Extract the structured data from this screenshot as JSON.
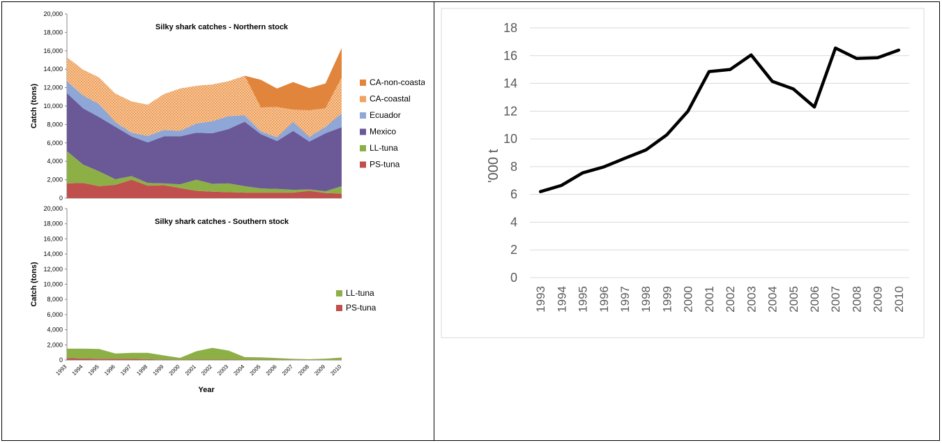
{
  "chart_data": [
    {
      "type": "area",
      "stacked": true,
      "title": "Silky shark catches - Northern stock",
      "ylabel": "Catch (tons)",
      "xlabel": "",
      "ylim": [
        0,
        20000
      ],
      "yticks": [
        "0",
        "2,000",
        "4,000",
        "6,000",
        "8,000",
        "10,000",
        "12,000",
        "14,000",
        "16,000",
        "18,000",
        "20,000"
      ],
      "x": [
        1993,
        1994,
        1995,
        1996,
        1997,
        1998,
        1999,
        2000,
        2001,
        2002,
        2003,
        2004,
        2005,
        2006,
        2007,
        2008,
        2009,
        2010
      ],
      "legend_position": "right",
      "series": [
        {
          "name": "PS-tuna",
          "color": "#c0504d",
          "values": [
            1600,
            1650,
            1300,
            1450,
            2000,
            1350,
            1400,
            1100,
            800,
            700,
            650,
            600,
            600,
            600,
            600,
            800,
            550,
            500
          ]
        },
        {
          "name": "LL-tuna",
          "color": "#8db046",
          "values": [
            3500,
            2000,
            1600,
            600,
            400,
            300,
            200,
            400,
            1200,
            850,
            950,
            700,
            450,
            400,
            300,
            150,
            200,
            800
          ]
        },
        {
          "name": "Mexico",
          "color": "#6b5897",
          "values": [
            6300,
            6100,
            5900,
            5700,
            4300,
            4400,
            5100,
            5200,
            5100,
            5500,
            5900,
            7000,
            5900,
            5200,
            6400,
            5200,
            6300,
            6400
          ]
        },
        {
          "name": "Ecuador",
          "color": "#8ea7d6",
          "values": [
            1300,
            1400,
            1400,
            500,
            400,
            700,
            700,
            600,
            1000,
            1300,
            1400,
            700,
            300,
            400,
            1000,
            500,
            700,
            1500
          ]
        },
        {
          "name": "CA-coastal",
          "color": "#f2a15f",
          "pattern": "dotted",
          "values": [
            2600,
            2800,
            2900,
            3100,
            3400,
            3400,
            3900,
            4600,
            4100,
            4000,
            3800,
            4300,
            2600,
            3300,
            1300,
            2900,
            2000,
            3900
          ]
        },
        {
          "name": "CA-non-coastal",
          "color": "#e0853b",
          "values": [
            0,
            0,
            0,
            0,
            0,
            0,
            0,
            0,
            0,
            0,
            0,
            0,
            3000,
            2000,
            3000,
            2400,
            2700,
            3200
          ]
        }
      ]
    },
    {
      "type": "area",
      "stacked": true,
      "title": "Silky shark catches - Southern stock",
      "ylabel": "Catch (tons)",
      "xlabel": "Year",
      "ylim": [
        0,
        20000
      ],
      "yticks": [
        "0",
        "2,000",
        "4,000",
        "6,000",
        "8,000",
        "10,000",
        "12,000",
        "14,000",
        "16,000",
        "18,000",
        "20,000"
      ],
      "x": [
        1993,
        1994,
        1995,
        1996,
        1997,
        1998,
        1999,
        2000,
        2001,
        2002,
        2003,
        2004,
        2005,
        2006,
        2007,
        2008,
        2009,
        2010
      ],
      "legend_position": "right",
      "series": [
        {
          "name": "PS-tuna",
          "color": "#c0504d",
          "values": [
            250,
            200,
            150,
            150,
            150,
            100,
            50,
            30,
            50,
            50,
            50,
            30,
            30,
            30,
            20,
            20,
            20,
            20
          ]
        },
        {
          "name": "LL-tuna",
          "color": "#8db046",
          "values": [
            1250,
            1300,
            1300,
            700,
            800,
            850,
            550,
            250,
            1100,
            1550,
            1200,
            350,
            320,
            220,
            130,
            80,
            150,
            300
          ]
        }
      ]
    },
    {
      "type": "line",
      "title": "",
      "ylabel": "'000 t",
      "xlabel": "",
      "ylim": [
        0,
        18
      ],
      "yticks": [
        "0",
        "2",
        "4",
        "6",
        "8",
        "10",
        "12",
        "14",
        "16",
        "18"
      ],
      "grid": true,
      "x": [
        "1993",
        "1994",
        "1995",
        "1996",
        "1997",
        "1998",
        "1999",
        "2000",
        "2001",
        "2002",
        "2003",
        "2004",
        "2005",
        "2006",
        "2007",
        "2008",
        "2009",
        "2010"
      ],
      "series": [
        {
          "color": "#000000",
          "values": [
            6.2,
            6.65,
            7.55,
            7.98,
            8.6,
            9.2,
            10.3,
            12.0,
            14.85,
            15.0,
            16.05,
            14.15,
            13.6,
            12.3,
            16.55,
            15.8,
            15.85,
            16.4
          ]
        }
      ]
    }
  ]
}
